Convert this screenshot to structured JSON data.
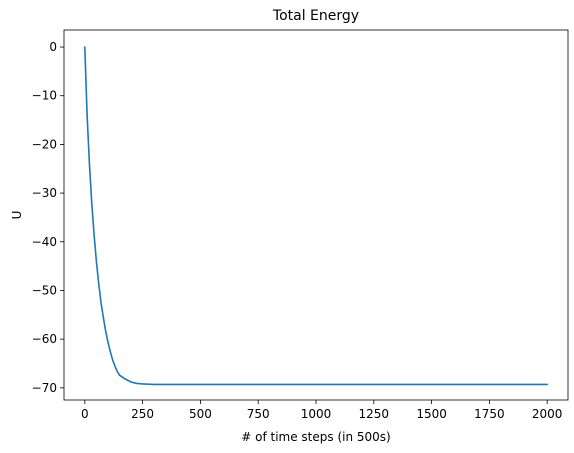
{
  "chart_data": {
    "type": "line",
    "title": "Total Energy",
    "xlabel": "# of time steps (in 500s)",
    "ylabel": "U",
    "xlim": [
      -90,
      2090
    ],
    "ylim": [
      -72.5,
      3.5
    ],
    "xticks": [
      0,
      250,
      500,
      750,
      1000,
      1250,
      1500,
      1750,
      2000
    ],
    "yticks": [
      0,
      -10,
      -20,
      -30,
      -40,
      -50,
      -60,
      -70
    ],
    "grid": false,
    "legend": "none",
    "series": [
      {
        "color": "#1f77b4",
        "x": [
          0,
          10,
          20,
          30,
          40,
          50,
          60,
          70,
          80,
          90,
          100,
          110,
          120,
          130,
          140,
          150,
          175,
          200,
          225,
          250,
          275,
          300,
          350,
          400,
          500,
          750,
          1000,
          1250,
          1500,
          1750,
          2000
        ],
        "y": [
          0,
          -14,
          -24,
          -32,
          -38.5,
          -44,
          -48.5,
          -52.5,
          -55.5,
          -58.3,
          -60.6,
          -62.5,
          -64.2,
          -65.5,
          -66.6,
          -67.4,
          -68.2,
          -68.8,
          -69.1,
          -69.2,
          -69.25,
          -69.3,
          -69.3,
          -69.3,
          -69.3,
          -69.3,
          -69.3,
          -69.3,
          -69.3,
          -69.3,
          -69.3
        ]
      }
    ]
  }
}
